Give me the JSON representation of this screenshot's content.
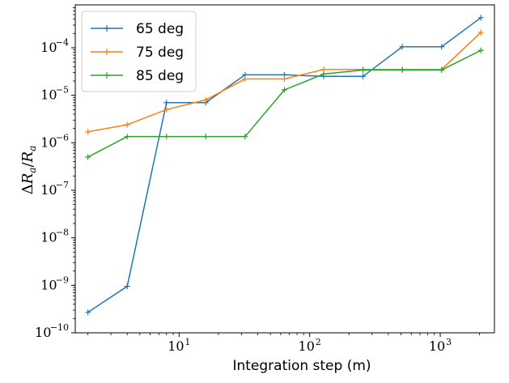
{
  "chart_data": {
    "type": "line",
    "title": "",
    "xlabel": "Integration step (m)",
    "ylabel": "ΔR_a/R_a",
    "ylabel_parts": {
      "delta": "Δ",
      "r": "R",
      "sub": "a",
      "slash": "/"
    },
    "x_scale": "log",
    "y_scale": "log",
    "xlim": [
      1.6,
      2600
    ],
    "ylim": [
      1e-10,
      0.0008
    ],
    "x_ticks": [
      {
        "value": 10,
        "base": "10",
        "exp": "1"
      },
      {
        "value": 100,
        "base": "10",
        "exp": "2"
      },
      {
        "value": 1000,
        "base": "10",
        "exp": "3"
      }
    ],
    "y_ticks": [
      {
        "value": 1e-10,
        "base": "10",
        "exp": "−10"
      },
      {
        "value": 1e-09,
        "base": "10",
        "exp": "−9"
      },
      {
        "value": 1e-08,
        "base": "10",
        "exp": "−8"
      },
      {
        "value": 1e-07,
        "base": "10",
        "exp": "−7"
      },
      {
        "value": 1e-06,
        "base": "10",
        "exp": "−6"
      },
      {
        "value": 1e-05,
        "base": "10",
        "exp": "−5"
      },
      {
        "value": 0.0001,
        "base": "10",
        "exp": "−4"
      }
    ],
    "x": [
      2,
      4,
      8,
      16,
      32,
      64,
      128,
      256,
      512,
      1024,
      2048
    ],
    "series": [
      {
        "name": "65 deg",
        "color": "#1f77b4",
        "values": [
          2.7e-10,
          9.5e-10,
          7e-06,
          7e-06,
          2.7e-05,
          2.7e-05,
          2.5e-05,
          2.5e-05,
          0.000105,
          0.000105,
          0.00043
        ]
      },
      {
        "name": "75 deg",
        "color": "#ff7f0e",
        "values": [
          1.7e-06,
          2.4e-06,
          5e-06,
          8e-06,
          2.2e-05,
          2.2e-05,
          3.5e-05,
          3.5e-05,
          3.5e-05,
          3.5e-05,
          0.00021
        ]
      },
      {
        "name": "85 deg",
        "color": "#2ca02c",
        "values": [
          5e-07,
          1.35e-06,
          1.35e-06,
          1.35e-06,
          1.35e-06,
          1.3e-05,
          2.8e-05,
          3.4e-05,
          3.4e-05,
          3.4e-05,
          8.8e-05
        ]
      }
    ],
    "legend_position": "top-left",
    "grid": false
  }
}
